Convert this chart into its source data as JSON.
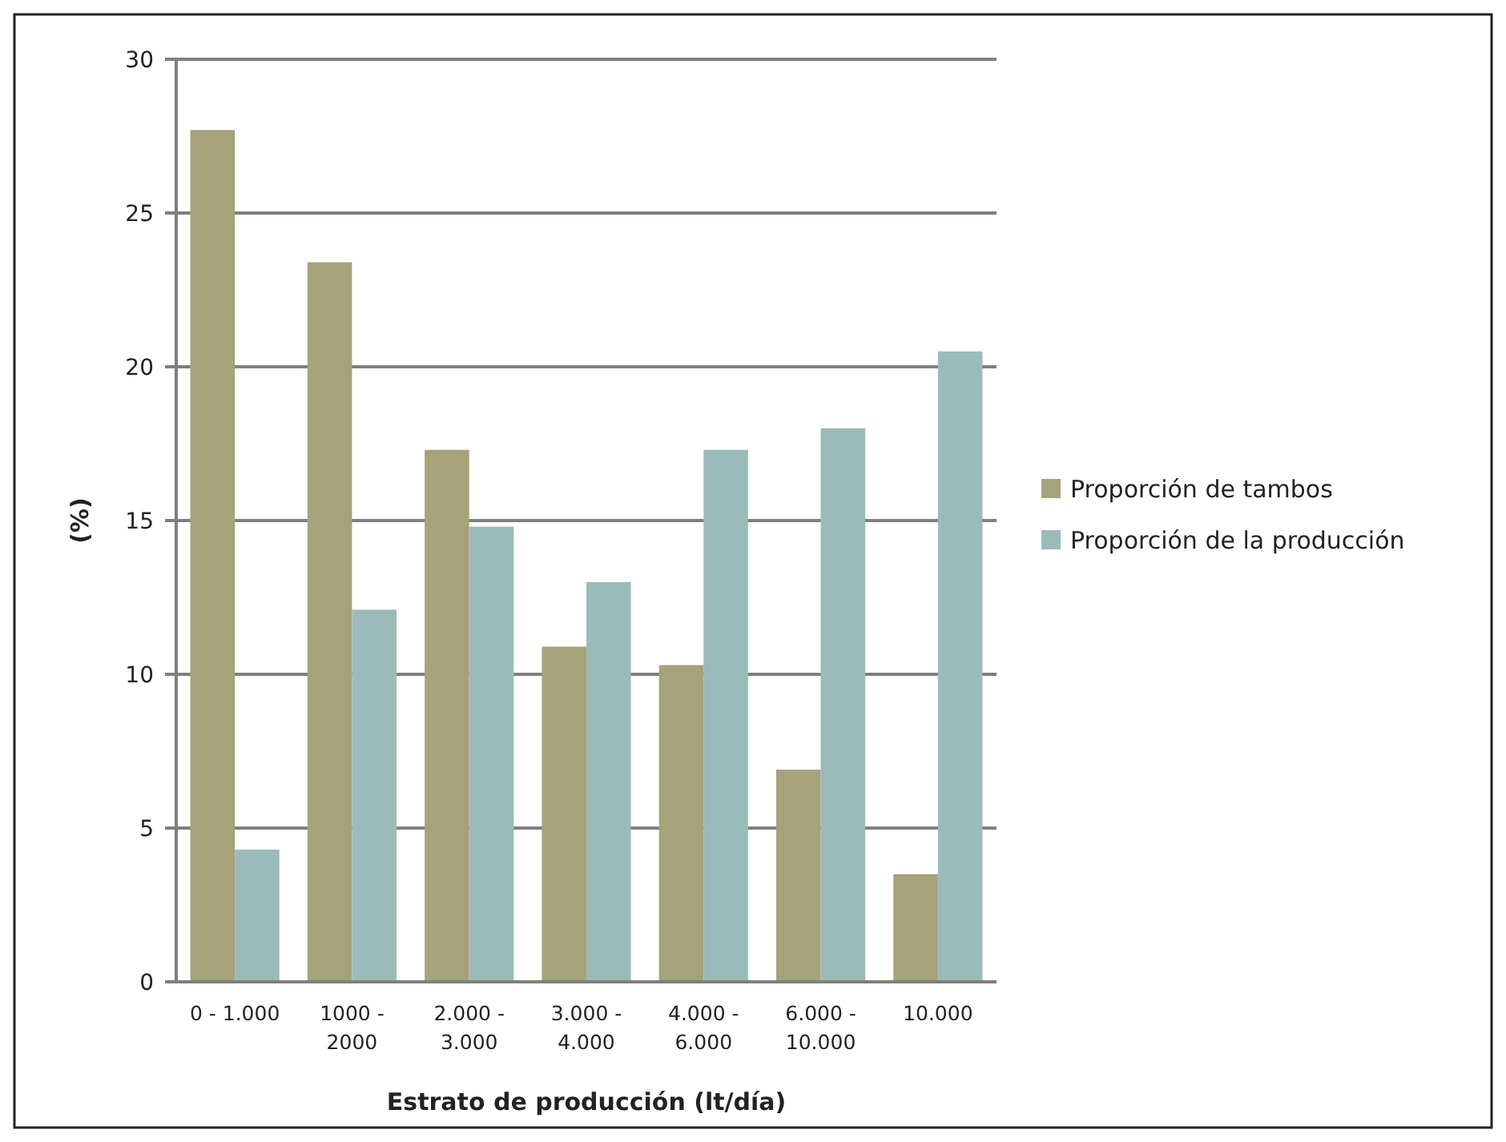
{
  "chart_data": {
    "type": "bar",
    "xlabel": "Estrato de producción (lt/día)",
    "ylabel": "(%)",
    "categories": [
      "0 - 1.000",
      "1000 -\n2000",
      "2.000 -\n3.000",
      "3.000 -\n4.000",
      "4.000 -\n6.000",
      "6.000 -\n10.000",
      "10.000"
    ],
    "series": [
      {
        "name": "Proporción de tambos",
        "color": "#a6a27a",
        "values": [
          27.7,
          23.4,
          17.3,
          10.9,
          10.3,
          6.9,
          3.5
        ]
      },
      {
        "name": "Proporción de la producción",
        "color": "#9bbbba",
        "values": [
          4.3,
          12.1,
          14.8,
          13.0,
          17.3,
          18.0,
          20.5
        ]
      }
    ],
    "ylim": [
      0,
      30
    ],
    "yticks": [
      0,
      5,
      10,
      15,
      20,
      25,
      30
    ],
    "grid": "y",
    "legend": "right"
  }
}
